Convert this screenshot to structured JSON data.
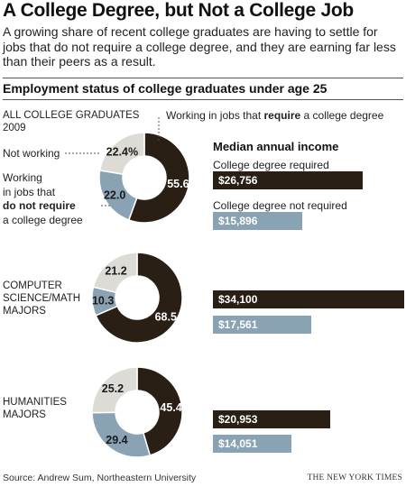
{
  "header": {
    "title": "A College Degree, but Not a College Job",
    "subtitle": "A growing share of recent college graduates are having to settle for jobs that do not require a college degree, and they are earning far less than their peers as a result.",
    "section_title": "Employment status of college graduates under age 25"
  },
  "legend": {
    "require_pre": "Working in jobs that ",
    "require_bold": "require",
    "require_post": " a college degree",
    "not_working": "Not working",
    "not_require_l1": "Working",
    "not_require_l2": "in jobs that",
    "not_require_bold": "do not require",
    "not_require_l4": "a college degree"
  },
  "income_header": "Median annual income",
  "income_labels": {
    "required": "College degree required",
    "not_required": "College degree not required"
  },
  "colors": {
    "require": "#2a1f14",
    "not_require": "#8aa3b4",
    "not_working": "#dddbd6"
  },
  "chart_data": [
    {
      "type": "pie",
      "group_label_lines": [
        "ALL COLLEGE GRADUATES",
        "2009"
      ],
      "slices": [
        {
          "name": "Working in jobs that require a college degree",
          "value": 55.6,
          "label": "55.6"
        },
        {
          "name": "Working in jobs that do not require a college degree",
          "value": 22.0,
          "label": "22.0"
        },
        {
          "name": "Not working",
          "value": 22.4,
          "label": "22.4%"
        }
      ],
      "income": [
        {
          "name": "College degree required",
          "value": 26756,
          "label": "$26,756"
        },
        {
          "name": "College degree not required",
          "value": 15896,
          "label": "$15,896"
        }
      ]
    },
    {
      "type": "pie",
      "group_label_lines": [
        "COMPUTER",
        "SCIENCE/MATH",
        "MAJORS"
      ],
      "slices": [
        {
          "name": "Working in jobs that require a college degree",
          "value": 68.5,
          "label": "68.5"
        },
        {
          "name": "Working in jobs that do not require a college degree",
          "value": 10.3,
          "label": "10.3"
        },
        {
          "name": "Not working",
          "value": 21.2,
          "label": "21.2"
        }
      ],
      "income": [
        {
          "name": "College degree required",
          "value": 34100,
          "label": "$34,100"
        },
        {
          "name": "College degree not required",
          "value": 17561,
          "label": "$17,561"
        }
      ]
    },
    {
      "type": "pie",
      "group_label_lines": [
        "HUMANITIES",
        "MAJORS"
      ],
      "slices": [
        {
          "name": "Working in jobs that require a college degree",
          "value": 45.4,
          "label": "45.4"
        },
        {
          "name": "Working in jobs that do not require a college degree",
          "value": 29.4,
          "label": "29.4"
        },
        {
          "name": "Not working",
          "value": 25.2,
          "label": "25.2"
        }
      ],
      "income": [
        {
          "name": "College degree required",
          "value": 20953,
          "label": "$20,953"
        },
        {
          "name": "College degree not required",
          "value": 14051,
          "label": "$14,051"
        }
      ]
    }
  ],
  "footer": {
    "source": "Source: Andrew Sum, Northeastern University",
    "credit": "THE NEW YORK TIMES"
  }
}
